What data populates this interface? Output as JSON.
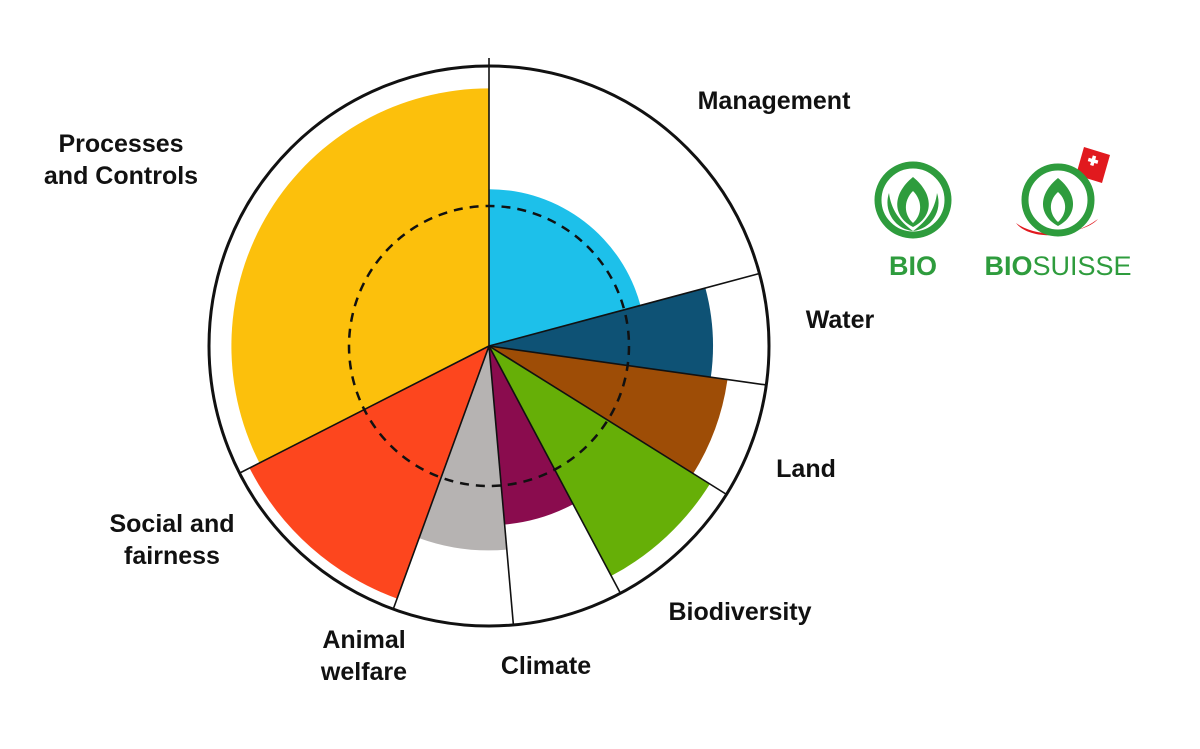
{
  "chart_data": {
    "type": "polar-area",
    "title": "",
    "max_value": 1.0,
    "reference_ring": 0.5,
    "segments": [
      {
        "label": "Management",
        "lines": [
          "Management"
        ],
        "start_angle": 0,
        "end_angle": 75,
        "value": 0.56,
        "color": "#1DC0EA"
      },
      {
        "label": "Water",
        "lines": [
          "Water"
        ],
        "start_angle": 75,
        "end_angle": 98,
        "value": 0.8,
        "color": "#0E5275"
      },
      {
        "label": "Land",
        "lines": [
          "Land"
        ],
        "start_angle": 98,
        "end_angle": 122,
        "value": 0.86,
        "color": "#9E4D06"
      },
      {
        "label": "Biodiversity",
        "lines": [
          "Biodiversity"
        ],
        "start_angle": 122,
        "end_angle": 152,
        "value": 0.93,
        "color": "#66AF07"
      },
      {
        "label": "Climate",
        "lines": [
          "Climate"
        ],
        "start_angle": 152,
        "end_angle": 175,
        "value": 0.64,
        "color": "#8A0C4E"
      },
      {
        "label": "Animal welfare",
        "lines": [
          "Animal",
          "welfare"
        ],
        "start_angle": 175,
        "end_angle": 200,
        "value": 0.73,
        "color": "#B6B3B2"
      },
      {
        "label": "Social and fairness",
        "lines": [
          "Social and",
          "fairness"
        ],
        "start_angle": 200,
        "end_angle": 243,
        "value": 0.96,
        "color": "#FD461E"
      },
      {
        "label": "Processes and Controls",
        "lines": [
          "Processes",
          "and Controls"
        ],
        "start_angle": 243,
        "end_angle": 360,
        "value": 0.92,
        "color": "#FCC00C"
      }
    ]
  },
  "logos": {
    "bio": {
      "text": "BIO",
      "color": "#2E9C3D"
    },
    "biosuisse": {
      "text_bold": "BIO",
      "text_light": "SUISSE",
      "color": "#2E9C3D",
      "accent": "#E1191E"
    }
  }
}
